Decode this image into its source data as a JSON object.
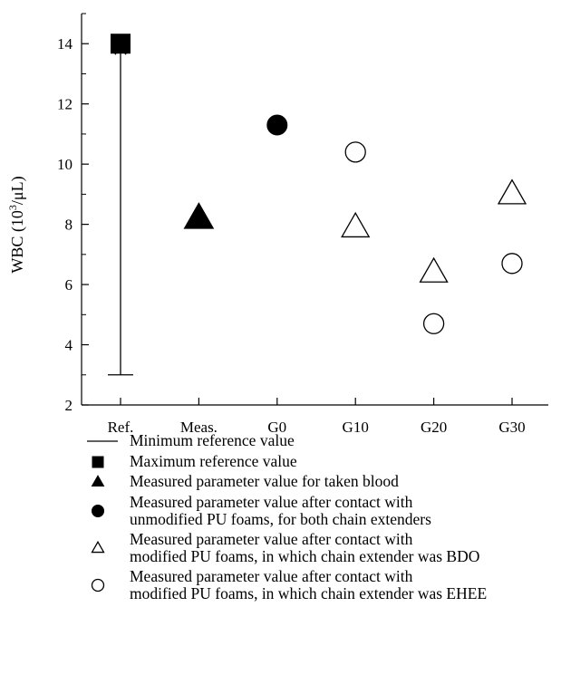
{
  "chart_data": {
    "type": "scatter",
    "categories": [
      "Ref.",
      "Meas.",
      "G0",
      "G10",
      "G20",
      "G30"
    ],
    "ylabel_prefix": "WBC (10",
    "ylabel_sup": "3",
    "ylabel_suffix": "/μL)",
    "ylim": [
      2,
      15
    ],
    "yticks": [
      2,
      4,
      6,
      8,
      10,
      12,
      14
    ],
    "yticklabels": [
      "2",
      "4",
      "6",
      "8",
      "10",
      "12",
      "14"
    ],
    "grid": false,
    "series": [
      {
        "marker": "range-bar",
        "points": [
          {
            "x": "Ref.",
            "low": 3.0,
            "high": 14.0
          }
        ]
      },
      {
        "marker": "filled-square",
        "points": [
          {
            "x": "Ref.",
            "y": 14.0
          }
        ]
      },
      {
        "marker": "filled-triangle",
        "points": [
          {
            "x": "Meas.",
            "y": 8.2
          }
        ]
      },
      {
        "marker": "filled-circle",
        "points": [
          {
            "x": "G0",
            "y": 11.3
          }
        ]
      },
      {
        "marker": "open-triangle",
        "points": [
          {
            "x": "G10",
            "y": 7.9
          },
          {
            "x": "G20",
            "y": 6.4
          },
          {
            "x": "G30",
            "y": 9.0
          }
        ]
      },
      {
        "marker": "open-circle",
        "points": [
          {
            "x": "G10",
            "y": 10.4
          },
          {
            "x": "G20",
            "y": 4.7
          },
          {
            "x": "G30",
            "y": 6.7
          }
        ]
      }
    ]
  },
  "legend": [
    {
      "symbol": "line",
      "lines": [
        "Minimum reference value"
      ]
    },
    {
      "symbol": "filled-square",
      "lines": [
        "Maximum reference value"
      ]
    },
    {
      "symbol": "filled-triangle",
      "lines": [
        "Measured parameter value for taken blood"
      ]
    },
    {
      "symbol": "filled-circle",
      "lines": [
        "Measured parameter value after contact with",
        "unmodified PU foams, for both chain extenders"
      ]
    },
    {
      "symbol": "open-triangle",
      "lines": [
        "Measured parameter value after contact with",
        "modified PU foams, in which chain extender was BDO"
      ]
    },
    {
      "symbol": "open-circle",
      "lines": [
        "Measured parameter value after contact with",
        "modified PU foams, in which chain extender was EHEE"
      ]
    }
  ]
}
